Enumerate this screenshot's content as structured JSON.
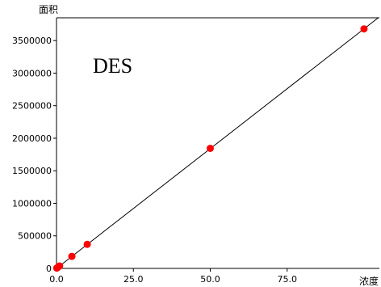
{
  "chart_data": {
    "type": "scatter",
    "title": "",
    "ylabel": "面积",
    "xlabel": "浓度",
    "annotation": "DES",
    "xlim": [
      0,
      105
    ],
    "ylim": [
      0,
      3850000
    ],
    "x_ticks": [
      0,
      25,
      50,
      75
    ],
    "x_tick_labels": [
      "0.0",
      "25.0",
      "50.0",
      "75.0"
    ],
    "y_ticks": [
      0,
      500000,
      1000000,
      1500000,
      2000000,
      2500000,
      3000000,
      3500000
    ],
    "y_tick_labels": [
      "0",
      "500000",
      "1000000",
      "1500000",
      "2000000",
      "2500000",
      "3000000",
      "3500000"
    ],
    "grid": false,
    "series": [
      {
        "points": [
          {
            "x": 0.1,
            "y": 5000
          },
          {
            "x": 0.5,
            "y": 20000
          },
          {
            "x": 1.0,
            "y": 38000
          },
          {
            "x": 5.0,
            "y": 185000
          },
          {
            "x": 10.0,
            "y": 370000
          },
          {
            "x": 50.0,
            "y": 1845000
          },
          {
            "x": 100.0,
            "y": 3680000
          }
        ],
        "color": "#ff0000"
      }
    ],
    "fit_line": {
      "slope": 36800,
      "intercept": 0,
      "color": "#000000"
    }
  }
}
